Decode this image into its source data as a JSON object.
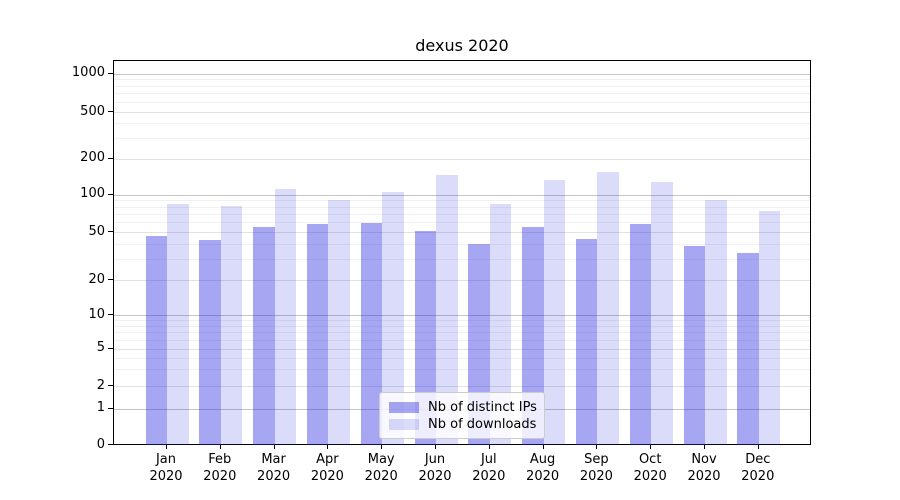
{
  "title": "dexus 2020",
  "chart_data": {
    "type": "bar",
    "title": "dexus 2020",
    "categories": [
      "Jan 2020",
      "Feb 2020",
      "Mar 2020",
      "Apr 2020",
      "May 2020",
      "Jun 2020",
      "Jul 2020",
      "Aug 2020",
      "Sep 2020",
      "Oct 2020",
      "Nov 2020",
      "Dec 2020"
    ],
    "month_labels": [
      "Jan",
      "Feb",
      "Mar",
      "Apr",
      "May",
      "Jun",
      "Jul",
      "Aug",
      "Sep",
      "Oct",
      "Nov",
      "Dec"
    ],
    "year_label": "2020",
    "series": [
      {
        "name": "Nb of distinct IPs",
        "color": "rgba(33,33,223,0.40)",
        "values": [
          47,
          43,
          55,
          59,
          60,
          51,
          40,
          55,
          44,
          59,
          39,
          34
        ]
      },
      {
        "name": "Nb of downloads",
        "color": "rgba(33,33,223,0.16)",
        "values": [
          84,
          82,
          112,
          92,
          106,
          147,
          84,
          133,
          156,
          128,
          92,
          75
        ]
      }
    ],
    "yscale": "symlog",
    "yticks": [
      0,
      1,
      2,
      5,
      10,
      20,
      50,
      100,
      200,
      500,
      1000
    ],
    "ylim": [
      0,
      1280
    ],
    "grid": true,
    "legend_position": "lower center",
    "colors": {
      "distinct_ips_rendered": "#a6a6f2",
      "downloads_rendered": "#dbdbfa",
      "major_grid": "#c5c5c5",
      "tick_grid": "#e2e2e2",
      "minor_grid": "#f0f0f0"
    }
  }
}
